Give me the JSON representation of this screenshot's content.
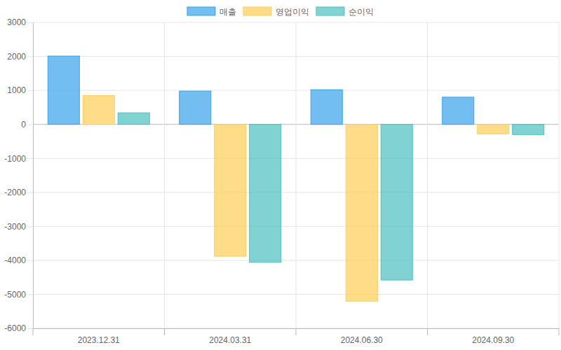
{
  "chart_data": {
    "type": "bar",
    "categories": [
      "2023.12.31",
      "2024.03.31",
      "2024.06.30",
      "2024.09.30"
    ],
    "series": [
      {
        "name": "매출",
        "color": "#36a2eb",
        "values": [
          2010,
          980,
          1020,
          800
        ]
      },
      {
        "name": "영업이익",
        "color": "#ffcd56",
        "values": [
          850,
          -3880,
          -5200,
          -280
        ]
      },
      {
        "name": "순이익",
        "color": "#4bc0c0",
        "values": [
          340,
          -4060,
          -4580,
          -300
        ]
      }
    ],
    "ylim": [
      -6000,
      3000
    ],
    "yticks": [
      -6000,
      -5000,
      -4000,
      -3000,
      -2000,
      -1000,
      0,
      1000,
      2000,
      3000
    ],
    "grid": true,
    "legend": "top"
  }
}
